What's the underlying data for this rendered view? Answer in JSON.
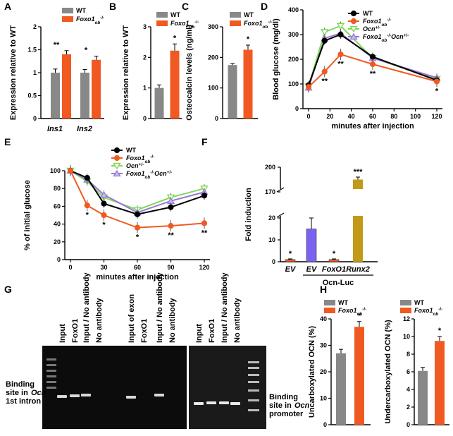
{
  "colors": {
    "wt": "#888888",
    "ko": "#f05a22",
    "ocn": "#7ed957",
    "dko": "#9b78d6",
    "black": "#000000",
    "ev_purple": "#7b62f0",
    "runx_gold": "#c29a17"
  },
  "chart_data": [
    {
      "panel": "A",
      "type": "bar",
      "ylabel": "Expression relative to WT",
      "categories": [
        "Ins1",
        "Ins2"
      ],
      "series": [
        {
          "name": "WT",
          "values": [
            1.0,
            1.0
          ],
          "errors": [
            0.08,
            0.07
          ]
        },
        {
          "name": "Foxo1ob-/-",
          "values": [
            1.4,
            1.28
          ],
          "errors": [
            0.08,
            0.08
          ]
        }
      ],
      "ylim": [
        0,
        2
      ],
      "yticks": [
        "0",
        "0.5",
        "1",
        "1.5",
        "2"
      ],
      "stars": [
        "**",
        "*"
      ],
      "legend": [
        "WT",
        "Foxo1ob-/-"
      ]
    },
    {
      "panel": "B",
      "type": "bar",
      "ylabel": "Expression relative to WT",
      "categories": [
        "WT",
        "Foxo1ob-/-"
      ],
      "values": [
        1.0,
        2.22
      ],
      "errors": [
        0.1,
        0.22
      ],
      "ylim": [
        0,
        3
      ],
      "yticks": [
        "0",
        "1",
        "2",
        "3"
      ],
      "stars": [
        "",
        "*"
      ],
      "legend": [
        "WT",
        "Foxo1ob-/-"
      ]
    },
    {
      "panel": "C",
      "type": "bar",
      "ylabel": "Osteocalcin levels (ng/ml)",
      "categories": [
        "WT",
        "Foxo1ob-/-"
      ],
      "values": [
        175,
        225
      ],
      "errors": [
        5,
        15
      ],
      "ylim": [
        0,
        300
      ],
      "yticks": [
        "0",
        "100",
        "200",
        "300"
      ],
      "stars": [
        "",
        "*"
      ],
      "legend": [
        "WT",
        "Foxo1ob-/-"
      ]
    },
    {
      "panel": "D",
      "type": "line",
      "ylabel": "Blood glucose (mg/dl)",
      "xlabel": "minutes after injection",
      "x": [
        0,
        15,
        30,
        60,
        120
      ],
      "xticks": [
        "0",
        "20",
        "40",
        "60",
        "80",
        "100",
        "120"
      ],
      "ylim": [
        0,
        400
      ],
      "yticks": [
        "0",
        "100",
        "200",
        "300",
        "400"
      ],
      "series": [
        {
          "name": "WT",
          "values": [
            95,
            275,
            300,
            210,
            115
          ]
        },
        {
          "name": "Foxo1ob-/-",
          "values": [
            88,
            150,
            220,
            180,
            110
          ]
        },
        {
          "name": "Ocn+/-",
          "values": [
            90,
            310,
            335,
            205,
            120
          ]
        },
        {
          "name": "Foxo1ob-/-Ocn+/-",
          "values": [
            85,
            285,
            305,
            205,
            125
          ]
        }
      ],
      "stars": [
        {
          "x": 15,
          "label": "**"
        },
        {
          "x": 30,
          "label": "**"
        },
        {
          "x": 60,
          "label": "**"
        },
        {
          "x": 120,
          "label": "*"
        }
      ]
    },
    {
      "panel": "E",
      "type": "line",
      "ylabel": "% of initial glucose",
      "xlabel": "minutes after injection",
      "x": [
        0,
        15,
        30,
        60,
        90,
        120
      ],
      "xticks": [
        "0",
        "30",
        "60",
        "90",
        "120"
      ],
      "ylim": [
        0,
        100
      ],
      "yticks": [
        "0",
        "20",
        "40",
        "60",
        "80",
        "100"
      ],
      "series": [
        {
          "name": "WT",
          "values": [
            100,
            92,
            63,
            51,
            59,
            72
          ]
        },
        {
          "name": "Foxo1ob-/-",
          "values": [
            100,
            61,
            50,
            36,
            38,
            41
          ]
        },
        {
          "name": "Ocn+/-",
          "values": [
            100,
            88,
            70,
            56,
            70,
            80
          ]
        },
        {
          "name": "Foxo1ob-/-Ocn+/-",
          "values": [
            100,
            90,
            73,
            53,
            66,
            76
          ]
        }
      ],
      "stars": [
        {
          "x": 15,
          "label": "*"
        },
        {
          "x": 30,
          "label": "*"
        },
        {
          "x": 60,
          "label": "*"
        },
        {
          "x": 90,
          "label": "**"
        },
        {
          "x": 120,
          "label": "**"
        }
      ]
    },
    {
      "panel": "F",
      "type": "bar",
      "ylabel": "Fold induction",
      "categories": [
        "EV",
        "EV",
        "FoxO1",
        "Runx2"
      ],
      "values": [
        1,
        15,
        1,
        185
      ],
      "errors": [
        0.3,
        5,
        0.3,
        3
      ],
      "yticks_lower": [
        "0",
        "10",
        "20"
      ],
      "yticks_upper": [
        "170",
        "200"
      ],
      "stars": [
        "*",
        "",
        "*",
        "***"
      ],
      "group_label": "Ocn-Luc"
    },
    {
      "panel": "H1",
      "type": "bar",
      "ylabel": "Uncarboxylated OCN (%)",
      "categories": [
        "WT",
        "Foxo1ob-/-"
      ],
      "values": [
        27,
        37
      ],
      "errors": [
        1.5,
        2
      ],
      "ylim": [
        0,
        40
      ],
      "yticks": [
        "0",
        "10",
        "20",
        "30",
        "40"
      ],
      "stars": [
        "",
        "*"
      ],
      "legend": [
        "WT",
        "Foxo1ob-/-"
      ]
    },
    {
      "panel": "H2",
      "type": "bar",
      "ylabel": "Undercarboxylated OCN (%)",
      "categories": [
        "WT",
        "Foxo1ob-/-"
      ],
      "values": [
        6.1,
        9.5
      ],
      "errors": [
        0.4,
        0.5
      ],
      "ylim": [
        0,
        12
      ],
      "yticks": [
        "0",
        "2",
        "4",
        "6",
        "8",
        "10",
        "12"
      ],
      "stars": [
        "",
        "*"
      ],
      "legend": [
        "WT",
        "Foxo1ob-/-"
      ]
    }
  ],
  "panel_g": {
    "lanes_left": [
      "Input",
      "FoxO1",
      "Input / No antibody",
      "No antibody"
    ],
    "lanes_mid": [
      "Input of exon",
      "FoxO1",
      "Input / No antibody",
      "No antibody"
    ],
    "lanes_right": [
      "Input",
      "FoxO1",
      "Input / No antibody",
      "No antibody"
    ],
    "label_left_1": "Binding",
    "label_left_2": "site in",
    "label_left_3": "Ocn",
    "label_left_4": "1st intron",
    "label_right_1": "Binding",
    "label_right_2": "site in",
    "label_right_3": "Ocn",
    "label_right_4": "promoter"
  },
  "panel_letters": [
    "A",
    "B",
    "C",
    "D",
    "E",
    "F",
    "G",
    "H"
  ]
}
